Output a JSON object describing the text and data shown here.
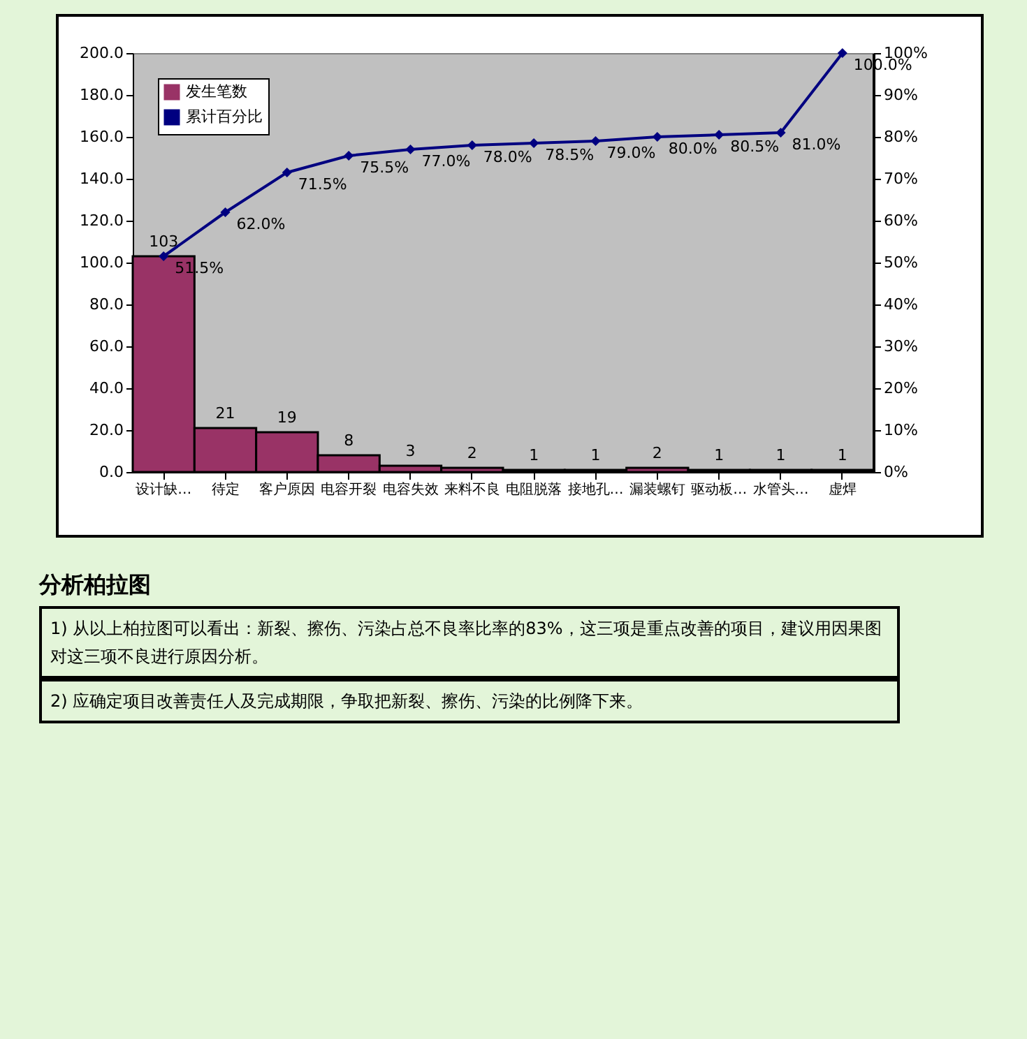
{
  "chart_data": {
    "type": "bar",
    "categories": [
      "设计缺…",
      "待定",
      "客户原因",
      "电容开裂",
      "电容失效",
      "来料不良",
      "电阻脱落",
      "接地孔…",
      "漏装螺钉",
      "驱动板…",
      "水管头…",
      "虚焊"
    ],
    "series": [
      {
        "name": "发生笔数",
        "color": "#993366",
        "values": [
          103,
          21,
          19,
          8,
          3,
          2,
          1,
          1,
          2,
          1,
          1,
          1
        ],
        "value_labels": [
          "103",
          "21",
          "19",
          "8",
          "3",
          "2",
          "1",
          "1",
          "2",
          "1",
          "1",
          "1"
        ]
      },
      {
        "name": "累计百分比",
        "type": "line",
        "axis": "y2",
        "color": "#000080",
        "values": [
          51.5,
          62.0,
          71.5,
          75.5,
          77.0,
          78.0,
          78.5,
          79.0,
          80.0,
          80.5,
          81.0,
          100.0
        ],
        "value_labels": [
          "51.5%",
          "62.0%",
          "71.5%",
          "75.5%",
          "77.0%",
          "78.0%",
          "78.5%",
          "79.0%",
          "80.0%",
          "80.5%",
          "81.0%",
          "100.0%"
        ]
      }
    ],
    "ylim": [
      0,
      200
    ],
    "yticks": [
      {
        "value": 0,
        "label": "0.0"
      },
      {
        "value": 20,
        "label": "20.0"
      },
      {
        "value": 40,
        "label": "40.0"
      },
      {
        "value": 60,
        "label": "60.0"
      },
      {
        "value": 80,
        "label": "80.0"
      },
      {
        "value": 100,
        "label": "100.0"
      },
      {
        "value": 120,
        "label": "120.0"
      },
      {
        "value": 140,
        "label": "140.0"
      },
      {
        "value": 160,
        "label": "160.0"
      },
      {
        "value": 180,
        "label": "180.0"
      },
      {
        "value": 200,
        "label": "200.0"
      }
    ],
    "y2lim": [
      0,
      100
    ],
    "y2ticks": [
      {
        "value": 0,
        "label": "0%"
      },
      {
        "value": 10,
        "label": "10%"
      },
      {
        "value": 20,
        "label": "20%"
      },
      {
        "value": 30,
        "label": "30%"
      },
      {
        "value": 40,
        "label": "40%"
      },
      {
        "value": 50,
        "label": "50%"
      },
      {
        "value": 60,
        "label": "60%"
      },
      {
        "value": 70,
        "label": "70%"
      },
      {
        "value": 80,
        "label": "80%"
      },
      {
        "value": 90,
        "label": "90%"
      },
      {
        "value": 100,
        "label": "100%"
      }
    ],
    "marker": "diamond",
    "legend": "top left",
    "grid": false,
    "annotations": [
      "分析柏拉图",
      "1) 从以上柏拉图可以看出：新裂、擦伤、污染占总不良率比率的83%，这三项是重点改善的项目，建议用因果图对这三项不良进行原因分析。",
      "2) 应确定项目改善责任人及完成期限，争取把新裂、擦伤、污染的比例降下来。"
    ]
  }
}
